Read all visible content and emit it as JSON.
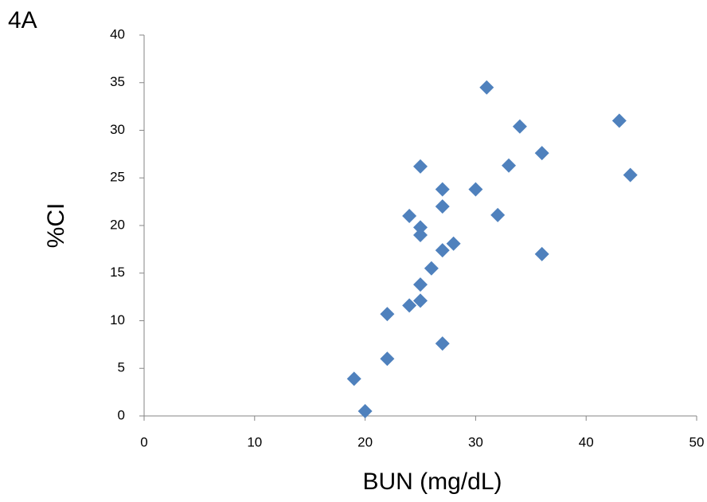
{
  "chart_data": {
    "type": "scatter",
    "title": "4A",
    "xlabel": "BUN (mg/dL)",
    "ylabel": "%CI",
    "x": [
      19,
      20,
      22,
      22,
      24,
      24,
      25,
      25,
      25,
      25,
      25,
      26,
      27,
      27,
      27,
      27,
      28,
      30,
      31,
      32,
      33,
      34,
      36,
      36,
      43,
      44
    ],
    "values": [
      3.9,
      0.5,
      6.0,
      10.7,
      11.6,
      21.0,
      12.1,
      13.8,
      19.0,
      19.8,
      26.2,
      15.5,
      7.6,
      17.4,
      22.0,
      23.8,
      18.1,
      23.8,
      34.5,
      21.1,
      26.3,
      30.4,
      27.6,
      17.0,
      31.0,
      25.3
    ],
    "color": "#4f81bd",
    "xlim": [
      0,
      50
    ],
    "xticks": [
      0,
      10,
      20,
      30,
      40,
      50
    ],
    "ylim": [
      0,
      40
    ],
    "yticks": [
      0,
      5,
      10,
      15,
      20,
      25,
      30,
      35,
      40
    ],
    "grid": false
  }
}
